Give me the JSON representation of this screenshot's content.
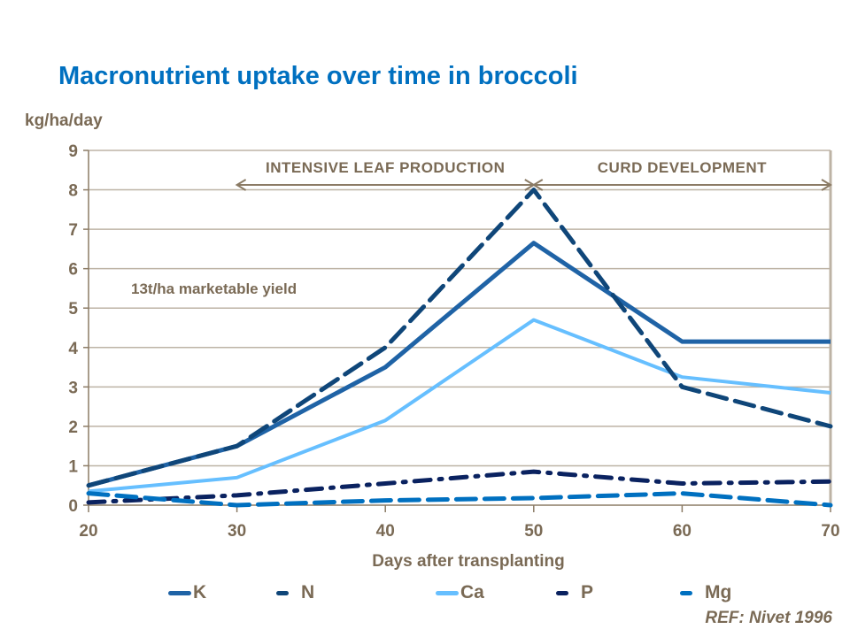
{
  "chart_data": {
    "type": "line",
    "title": "Macronutrient uptake over time in broccoli",
    "ylabel": "kg/ha/day",
    "xlabel": "Days after transplanting",
    "x": [
      20,
      30,
      40,
      50,
      60,
      70
    ],
    "xlim": [
      20,
      70
    ],
    "ylim": [
      0,
      9
    ],
    "xticks": [
      "20",
      "30",
      "40",
      "50",
      "60",
      "70"
    ],
    "yticks": [
      "0",
      "1",
      "2",
      "3",
      "4",
      "5",
      "6",
      "7",
      "8",
      "9"
    ],
    "grid": "horizontal",
    "legend_position": "bottom",
    "series": [
      {
        "name": "K",
        "values": [
          0.5,
          1.5,
          3.5,
          6.65,
          4.15,
          4.15
        ],
        "color": "#1F63A6",
        "style": "solid"
      },
      {
        "name": "N",
        "values": [
          0.5,
          1.5,
          4.0,
          8.0,
          3.0,
          2.0
        ],
        "color": "#0F4679",
        "style": "dashed"
      },
      {
        "name": "Ca",
        "values": [
          0.35,
          0.7,
          2.15,
          4.7,
          3.25,
          2.85
        ],
        "color": "#66BFFF",
        "style": "solid"
      },
      {
        "name": "P",
        "values": [
          0.07,
          0.25,
          0.55,
          0.85,
          0.55,
          0.6
        ],
        "color": "#0A2260",
        "style": "dashdot"
      },
      {
        "name": "Mg",
        "values": [
          0.3,
          0.0,
          0.12,
          0.18,
          0.3,
          0.0
        ],
        "color": "#0070C0",
        "style": "dashed"
      }
    ],
    "annotations": {
      "yield": "13t/ha marketable yield",
      "phase1": {
        "label": "INTENSIVE  LEAF PRODUCTION",
        "from": 30,
        "to": 50
      },
      "phase2": {
        "label": "CURD DEVELOPMENT",
        "from": 50,
        "to": 70
      }
    },
    "reference": "REF: Nivet  1996"
  }
}
